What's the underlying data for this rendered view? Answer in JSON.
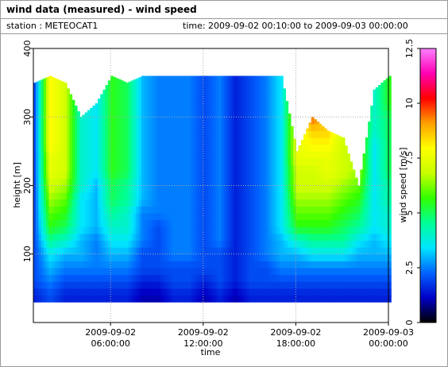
{
  "header": {
    "title": "wind data (measured) - wind speed",
    "station": "station : METEOCAT1",
    "time_range": "time: 2009-09-02 00:10:00 to 2009-09-03 00:00:00"
  },
  "chart_data": {
    "type": "heatmap",
    "title": "wind data (measured) - wind speed",
    "xlabel": "time",
    "ylabel": "height [m]",
    "colorbar_label": "wind speed [m/s]",
    "x_range": [
      "2009-09-02 01:00:00",
      "2009-09-03 00:00:00"
    ],
    "xticks": [
      {
        "value": "2009-09-02 06:00:00",
        "line1": "2009-09-02",
        "line2": "06:00:00"
      },
      {
        "value": "2009-09-02 12:00:00",
        "line1": "2009-09-02",
        "line2": "12:00:00"
      },
      {
        "value": "2009-09-02 18:00:00",
        "line1": "2009-09-02",
        "line2": "18:00:00"
      },
      {
        "value": "2009-09-03 00:00:00",
        "line1": "2009-09-03",
        "line2": "00:00:00"
      }
    ],
    "ylim": [
      0,
      400
    ],
    "yticks": [
      100,
      200,
      300,
      400
    ],
    "colorbar_range": [
      0,
      12.5
    ],
    "colorbar_ticks": [
      0,
      2.5,
      5,
      7.5,
      10,
      12.5
    ],
    "colormap": [
      "#000000",
      "#0000c8",
      "#0064ff",
      "#00e6ff",
      "#00ff96",
      "#32ff00",
      "#c8ff00",
      "#ffff00",
      "#ffa000",
      "#ff0000",
      "#ff00b4",
      "#ff80ff"
    ],
    "grid": true,
    "heights_m": [
      40,
      60,
      80,
      100,
      120,
      140,
      160,
      180,
      200,
      220,
      240,
      260,
      280,
      300,
      320,
      340,
      360
    ],
    "time_hours": [
      1,
      2,
      3,
      4,
      5,
      6,
      7,
      8,
      9,
      10,
      11,
      12,
      13,
      14,
      15,
      16,
      17,
      18,
      19,
      20,
      21,
      22,
      23,
      24
    ],
    "data_top_m": [
      350,
      360,
      350,
      300,
      320,
      360,
      350,
      360,
      360,
      360,
      360,
      360,
      360,
      360,
      360,
      360,
      360,
      250,
      300,
      280,
      270,
      200,
      340,
      360
    ],
    "speed_ms": [
      [
        1.5,
        2.0,
        2.0,
        2.0,
        2.0,
        2.0,
        2.0,
        2.0,
        2.0,
        2.0,
        2.0,
        2.0,
        2.0,
        2.0,
        2.0,
        2.0,
        2.0
      ],
      [
        2.0,
        2.5,
        3.0,
        3.5,
        4.5,
        5.5,
        6.0,
        6.5,
        7.0,
        7.5,
        7.5,
        8.0,
        8.0,
        8.0,
        8.0,
        8.0,
        8.0
      ],
      [
        1.5,
        2.0,
        2.5,
        3.0,
        4.0,
        5.0,
        5.5,
        6.0,
        6.5,
        7.0,
        7.0,
        7.0,
        7.0,
        7.0,
        7.0,
        7.0,
        7.0
      ],
      [
        1.5,
        2.0,
        2.5,
        3.0,
        3.0,
        3.5,
        3.5,
        3.5,
        4.0,
        4.0,
        4.0,
        4.0,
        4.0,
        4.0,
        4.0,
        4.0,
        4.0
      ],
      [
        1.5,
        2.0,
        2.5,
        2.5,
        2.5,
        3.0,
        3.0,
        3.0,
        3.0,
        3.5,
        3.5,
        3.5,
        3.5,
        3.5,
        3.5,
        3.5,
        3.5
      ],
      [
        1.5,
        2.0,
        2.5,
        3.0,
        3.5,
        4.0,
        4.5,
        5.0,
        5.0,
        5.5,
        5.5,
        5.5,
        5.5,
        5.5,
        5.5,
        5.5,
        5.5
      ],
      [
        1.5,
        2.0,
        2.5,
        3.0,
        3.5,
        4.0,
        4.0,
        4.5,
        4.5,
        5.0,
        5.0,
        5.0,
        5.0,
        5.0,
        5.0,
        5.0,
        5.0
      ],
      [
        1.0,
        1.5,
        2.0,
        2.0,
        2.5,
        2.5,
        2.5,
        3.0,
        3.0,
        3.0,
        3.0,
        3.0,
        3.0,
        3.0,
        3.0,
        3.0,
        3.0
      ],
      [
        1.0,
        1.5,
        2.0,
        2.0,
        2.0,
        2.0,
        2.5,
        2.5,
        2.5,
        2.5,
        2.5,
        2.5,
        2.5,
        2.5,
        2.5,
        2.5,
        2.5
      ],
      [
        1.5,
        2.0,
        2.0,
        2.5,
        2.5,
        2.5,
        2.5,
        2.5,
        2.5,
        2.5,
        2.5,
        2.5,
        2.5,
        2.5,
        2.5,
        2.5,
        2.5
      ],
      [
        1.5,
        2.0,
        2.0,
        2.5,
        2.5,
        2.5,
        2.5,
        2.5,
        2.5,
        2.5,
        2.5,
        2.5,
        2.5,
        2.5,
        2.5,
        2.5,
        2.5
      ],
      [
        1.0,
        1.5,
        2.0,
        2.0,
        2.0,
        2.0,
        2.0,
        2.0,
        2.0,
        2.0,
        2.0,
        2.0,
        2.0,
        2.0,
        2.0,
        2.0,
        2.0
      ],
      [
        1.5,
        2.0,
        2.0,
        2.0,
        2.5,
        2.5,
        2.5,
        2.5,
        2.5,
        2.5,
        2.5,
        2.5,
        2.5,
        2.5,
        2.5,
        2.5,
        2.5
      ],
      [
        1.0,
        1.5,
        1.5,
        1.5,
        1.5,
        1.5,
        1.5,
        1.5,
        1.5,
        1.5,
        1.5,
        1.5,
        1.5,
        1.5,
        1.5,
        1.5,
        1.5
      ],
      [
        1.5,
        2.0,
        2.0,
        2.0,
        2.0,
        2.0,
        2.0,
        2.0,
        2.0,
        2.0,
        2.0,
        2.0,
        2.0,
        2.0,
        2.0,
        2.0,
        2.0
      ],
      [
        1.5,
        2.0,
        2.0,
        2.5,
        2.5,
        2.5,
        2.5,
        2.5,
        2.5,
        2.5,
        2.5,
        2.5,
        2.5,
        2.5,
        2.5,
        2.5,
        2.5
      ],
      [
        1.5,
        2.0,
        2.5,
        3.0,
        3.0,
        3.5,
        3.5,
        3.5,
        3.5,
        3.5,
        3.5,
        3.5,
        3.5,
        3.5,
        3.5,
        3.5,
        3.5
      ],
      [
        1.5,
        2.0,
        2.5,
        3.0,
        4.0,
        5.5,
        6.0,
        6.5,
        7.0,
        7.0,
        7.5,
        7.5,
        7.5,
        7.5,
        7.5,
        7.5,
        7.5
      ],
      [
        1.5,
        2.0,
        2.5,
        3.5,
        4.5,
        5.5,
        6.0,
        6.5,
        7.0,
        7.0,
        7.5,
        8.0,
        8.5,
        9.5,
        9.5,
        9.5,
        9.5
      ],
      [
        1.5,
        2.0,
        2.5,
        3.5,
        4.5,
        5.5,
        6.0,
        6.5,
        7.0,
        7.5,
        7.5,
        8.0,
        8.5,
        8.5,
        8.5,
        8.5,
        8.5
      ],
      [
        1.5,
        2.0,
        2.5,
        3.5,
        4.5,
        5.0,
        5.5,
        6.0,
        6.5,
        7.0,
        7.0,
        7.0,
        7.0,
        7.0,
        7.0,
        7.0,
        7.0
      ],
      [
        1.5,
        2.0,
        2.5,
        3.0,
        3.5,
        4.5,
        5.0,
        5.5,
        6.0,
        6.5,
        6.5,
        6.5,
        6.5,
        6.5,
        6.5,
        6.5,
        6.5
      ],
      [
        1.5,
        2.0,
        2.5,
        3.0,
        3.0,
        3.5,
        3.5,
        3.5,
        3.5,
        3.5,
        3.5,
        3.5,
        4.0,
        4.0,
        4.0,
        4.0,
        4.0
      ],
      [
        1.5,
        2.0,
        2.5,
        3.0,
        3.5,
        4.0,
        4.0,
        4.5,
        4.5,
        5.0,
        5.0,
        5.0,
        5.0,
        5.0,
        5.5,
        5.5,
        5.5
      ]
    ]
  }
}
